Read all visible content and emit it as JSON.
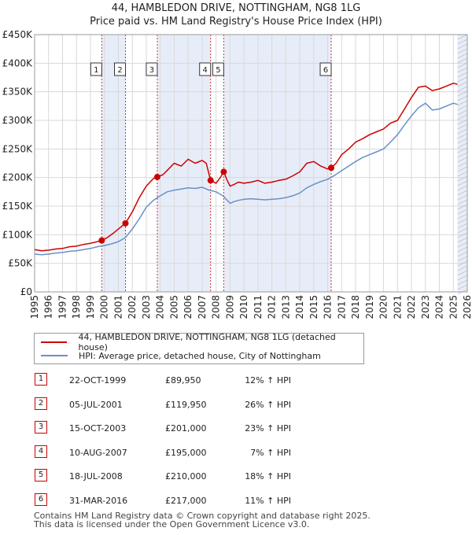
{
  "chart_data": {
    "type": "line",
    "title": "44, HAMBLEDON DRIVE, NOTTINGHAM, NG8 1LG",
    "subtitle": "Price paid vs. HM Land Registry's House Price Index (HPI)",
    "xlim": [
      1995,
      2026
    ],
    "ylim": [
      0,
      450000
    ],
    "x_ticks": [
      "1995",
      "1996",
      "1997",
      "1998",
      "1999",
      "2000",
      "2001",
      "2002",
      "2003",
      "2004",
      "2005",
      "2006",
      "2007",
      "2008",
      "2009",
      "2010",
      "2011",
      "2012",
      "2013",
      "2014",
      "2015",
      "2016",
      "2017",
      "2018",
      "2019",
      "2020",
      "2021",
      "2022",
      "2023",
      "2024",
      "2025",
      "2026"
    ],
    "y_ticks": [
      {
        "value": 0,
        "label": "£0"
      },
      {
        "value": 50000,
        "label": "£50K"
      },
      {
        "value": 100000,
        "label": "£100K"
      },
      {
        "value": 150000,
        "label": "£150K"
      },
      {
        "value": 200000,
        "label": "£200K"
      },
      {
        "value": 250000,
        "label": "£250K"
      },
      {
        "value": 300000,
        "label": "£300K"
      },
      {
        "value": 350000,
        "label": "£350K"
      },
      {
        "value": 400000,
        "label": "£400K"
      },
      {
        "value": 450000,
        "label": "£450K"
      }
    ],
    "series": [
      {
        "name": "44, HAMBLEDON DRIVE, NOTTINGHAM, NG8 1LG (detached house)",
        "color": "#cc0000",
        "x": [
          1995.0,
          1995.5,
          1996.0,
          1996.5,
          1997.0,
          1997.5,
          1998.0,
          1998.5,
          1999.0,
          1999.5,
          1999.81,
          2000.2,
          2000.6,
          2001.0,
          2001.51,
          2002.0,
          2002.5,
          2003.0,
          2003.5,
          2003.79,
          2004.2,
          2004.6,
          2005.0,
          2005.5,
          2006.0,
          2006.5,
          2007.0,
          2007.3,
          2007.61,
          2008.0,
          2008.3,
          2008.55,
          2008.8,
          2009.0,
          2009.3,
          2009.6,
          2010.0,
          2010.5,
          2011.0,
          2011.5,
          2012.0,
          2012.5,
          2013.0,
          2013.5,
          2014.0,
          2014.5,
          2015.0,
          2015.5,
          2016.0,
          2016.25,
          2016.6,
          2017.0,
          2017.5,
          2018.0,
          2018.5,
          2019.0,
          2019.5,
          2020.0,
          2020.5,
          2021.0,
          2021.5,
          2022.0,
          2022.5,
          2023.0,
          2023.5,
          2024.0,
          2024.5,
          2025.0,
          2025.3
        ],
        "values": [
          74000,
          72000,
          73000,
          75000,
          76000,
          79000,
          80000,
          83000,
          85000,
          88000,
          89950,
          95000,
          102000,
          110000,
          119950,
          140000,
          165000,
          185000,
          198000,
          201000,
          205000,
          215000,
          225000,
          220000,
          232000,
          225000,
          230000,
          225000,
          195000,
          190000,
          200000,
          210000,
          195000,
          185000,
          188000,
          192000,
          190000,
          192000,
          195000,
          190000,
          192000,
          195000,
          197000,
          203000,
          210000,
          225000,
          228000,
          220000,
          215000,
          217000,
          225000,
          240000,
          250000,
          262000,
          268000,
          275000,
          280000,
          285000,
          295000,
          300000,
          320000,
          340000,
          358000,
          360000,
          352000,
          355000,
          360000,
          365000,
          363000
        ]
      },
      {
        "name": "HPI: Average price, detached house, City of Nottingham",
        "color": "#6a8fc8",
        "x": [
          1995.0,
          1995.5,
          1996.0,
          1996.5,
          1997.0,
          1997.5,
          1998.0,
          1998.5,
          1999.0,
          1999.5,
          2000.0,
          2000.5,
          2001.0,
          2001.5,
          2002.0,
          2002.5,
          2003.0,
          2003.5,
          2004.0,
          2004.5,
          2005.0,
          2005.5,
          2006.0,
          2006.5,
          2007.0,
          2007.5,
          2008.0,
          2008.5,
          2009.0,
          2009.3,
          2009.6,
          2010.0,
          2010.5,
          2011.0,
          2011.5,
          2012.0,
          2012.5,
          2013.0,
          2013.5,
          2014.0,
          2014.5,
          2015.0,
          2015.5,
          2016.0,
          2016.5,
          2017.0,
          2017.5,
          2018.0,
          2018.5,
          2019.0,
          2019.5,
          2020.0,
          2020.5,
          2021.0,
          2021.5,
          2022.0,
          2022.5,
          2023.0,
          2023.5,
          2024.0,
          2024.5,
          2025.0,
          2025.3
        ],
        "values": [
          66000,
          65000,
          66000,
          68000,
          69000,
          71000,
          72000,
          74000,
          76000,
          79000,
          81000,
          84000,
          88000,
          95000,
          110000,
          128000,
          148000,
          160000,
          168000,
          175000,
          178000,
          180000,
          182000,
          181000,
          183000,
          178000,
          175000,
          168000,
          155000,
          158000,
          160000,
          162000,
          163000,
          162000,
          161000,
          162000,
          163000,
          165000,
          168000,
          173000,
          182000,
          188000,
          193000,
          197000,
          204000,
          212000,
          220000,
          228000,
          235000,
          240000,
          245000,
          250000,
          262000,
          275000,
          292000,
          308000,
          322000,
          330000,
          318000,
          320000,
          325000,
          330000,
          328000
        ]
      }
    ],
    "sales": [
      {
        "num": "1",
        "x": 1999.81,
        "value": 89950
      },
      {
        "num": "2",
        "x": 2001.51,
        "value": 119950
      },
      {
        "num": "3",
        "x": 2003.79,
        "value": 201000
      },
      {
        "num": "4",
        "x": 2007.61,
        "value": 195000
      },
      {
        "num": "5",
        "x": 2008.55,
        "value": 210000
      },
      {
        "num": "6",
        "x": 2016.25,
        "value": 217000
      }
    ],
    "shaded_ranges": [
      [
        1999.81,
        2001.51
      ],
      [
        2003.79,
        2007.61
      ],
      [
        2008.55,
        2016.25
      ],
      [
        2025.3,
        2026
      ]
    ]
  },
  "legend": {
    "property": "44, HAMBLEDON DRIVE, NOTTINGHAM, NG8 1LG (detached house)",
    "hpi": "HPI: Average price, detached house, City of Nottingham"
  },
  "transactions": [
    {
      "num": "1",
      "date": "22-OCT-1999",
      "price": "£89,950",
      "hpi": "12% ↑ HPI"
    },
    {
      "num": "2",
      "date": "05-JUL-2001",
      "price": "£119,950",
      "hpi": "26% ↑ HPI"
    },
    {
      "num": "3",
      "date": "15-OCT-2003",
      "price": "£201,000",
      "hpi": "23% ↑ HPI"
    },
    {
      "num": "4",
      "date": "10-AUG-2007",
      "price": "£195,000",
      "hpi": "7% ↑ HPI"
    },
    {
      "num": "5",
      "date": "18-JUL-2008",
      "price": "£210,000",
      "hpi": "18% ↑ HPI"
    },
    {
      "num": "6",
      "date": "31-MAR-2016",
      "price": "£217,000",
      "hpi": "11% ↑ HPI"
    }
  ],
  "footer": {
    "line1": "Contains HM Land Registry data © Crown copyright and database right 2025.",
    "line2": "This data is licensed under the Open Government Licence v3.0."
  }
}
